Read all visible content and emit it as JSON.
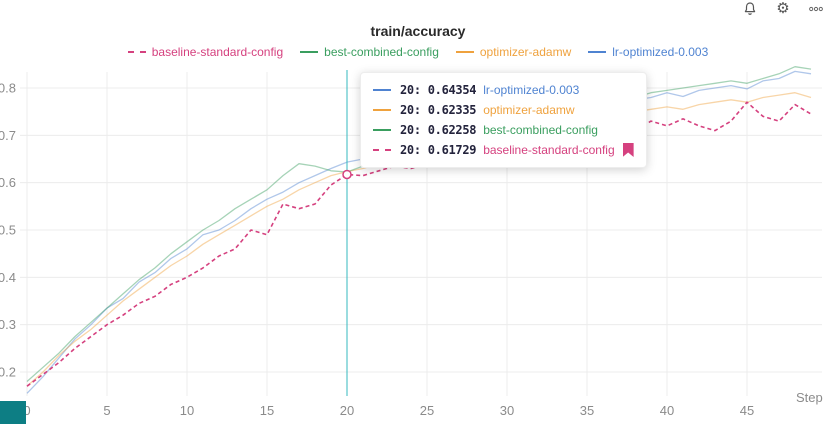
{
  "header": {
    "title": "train/accuracy",
    "icons": [
      "bell-icon",
      "gear-icon",
      "more-options-icon"
    ]
  },
  "colors": {
    "pink": "#d5417f",
    "green": "#3a9e5f",
    "orange": "#efa23e",
    "blue": "#4f83d1",
    "crosshair": "#35b8bf",
    "grid": "#ececec",
    "axis_text": "#8b8b8b"
  },
  "legend": {
    "items": [
      {
        "label": "baseline-standard-config",
        "color": "#d5417f",
        "dashed": true
      },
      {
        "label": "best-combined-config",
        "color": "#3a9e5f",
        "dashed": false
      },
      {
        "label": "optimizer-adamw",
        "color": "#efa23e",
        "dashed": false
      },
      {
        "label": "lr-optimized-0.003",
        "color": "#4f83d1",
        "dashed": false
      }
    ]
  },
  "tooltip": {
    "separator": ": ",
    "rows": [
      {
        "step": "20",
        "value": "0.64354",
        "name": "lr-optimized-0.003",
        "color": "#4f83d1",
        "dashed": false,
        "bookmarked": false
      },
      {
        "step": "20",
        "value": "0.62335",
        "name": "optimizer-adamw",
        "color": "#efa23e",
        "dashed": false,
        "bookmarked": false
      },
      {
        "step": "20",
        "value": "0.62258",
        "name": "best-combined-config",
        "color": "#3a9e5f",
        "dashed": false,
        "bookmarked": false
      },
      {
        "step": "20",
        "value": "0.61729",
        "name": "baseline-standard-config",
        "color": "#d5417f",
        "dashed": true,
        "bookmarked": true
      }
    ]
  },
  "chart_data": {
    "type": "line",
    "title": "train/accuracy",
    "xlabel": "Step",
    "ylabel": "",
    "x_ticks": [
      0,
      5,
      10,
      15,
      20,
      25,
      30,
      35,
      40,
      45
    ],
    "y_ticks": [
      0.2,
      0.3,
      0.4,
      0.5,
      0.6,
      0.7,
      0.8
    ],
    "xlim": [
      0,
      49.5
    ],
    "ylim": [
      0.13,
      0.85
    ],
    "grid": true,
    "legend_position": "top",
    "crosshair_step": 20,
    "highlight": {
      "series": "baseline-standard-config",
      "step": 20,
      "value": 0.61729
    },
    "series": [
      {
        "name": "baseline-standard-config",
        "color": "#d5417f",
        "dashed": true,
        "values": [
          0.17,
          0.195,
          0.22,
          0.25,
          0.275,
          0.3,
          0.32,
          0.345,
          0.36,
          0.385,
          0.4,
          0.42,
          0.445,
          0.46,
          0.5,
          0.49,
          0.555,
          0.545,
          0.555,
          0.595,
          0.61729,
          0.615,
          0.625,
          0.635,
          0.63,
          0.64,
          0.65,
          0.645,
          0.655,
          0.66,
          0.67,
          0.675,
          0.68,
          0.685,
          0.69,
          0.695,
          0.7,
          0.705,
          0.71,
          0.73,
          0.72,
          0.735,
          0.72,
          0.71,
          0.73,
          0.77,
          0.74,
          0.73,
          0.765,
          0.745
        ]
      },
      {
        "name": "best-combined-config",
        "color": "#3a9e5f",
        "dashed": false,
        "values": [
          0.18,
          0.21,
          0.24,
          0.275,
          0.305,
          0.335,
          0.365,
          0.395,
          0.42,
          0.45,
          0.475,
          0.5,
          0.52,
          0.545,
          0.565,
          0.585,
          0.615,
          0.64,
          0.635,
          0.625,
          0.62258,
          0.635,
          0.65,
          0.66,
          0.67,
          0.68,
          0.69,
          0.7,
          0.705,
          0.715,
          0.72,
          0.73,
          0.74,
          0.745,
          0.755,
          0.76,
          0.77,
          0.775,
          0.78,
          0.79,
          0.795,
          0.8,
          0.805,
          0.81,
          0.815,
          0.81,
          0.82,
          0.83,
          0.845,
          0.84
        ]
      },
      {
        "name": "optimizer-adamw",
        "color": "#efa23e",
        "dashed": false,
        "values": [
          0.17,
          0.2,
          0.235,
          0.265,
          0.29,
          0.32,
          0.35,
          0.375,
          0.4,
          0.425,
          0.445,
          0.47,
          0.49,
          0.51,
          0.53,
          0.55,
          0.565,
          0.585,
          0.6,
          0.615,
          0.62335,
          0.63,
          0.64,
          0.65,
          0.655,
          0.665,
          0.67,
          0.68,
          0.685,
          0.695,
          0.7,
          0.71,
          0.715,
          0.72,
          0.73,
          0.735,
          0.74,
          0.745,
          0.75,
          0.755,
          0.76,
          0.755,
          0.765,
          0.77,
          0.775,
          0.77,
          0.78,
          0.785,
          0.79,
          0.78
        ]
      },
      {
        "name": "lr-optimized-0.003",
        "color": "#4f83d1",
        "dashed": false,
        "values": [
          0.155,
          0.19,
          0.23,
          0.27,
          0.3,
          0.335,
          0.355,
          0.39,
          0.41,
          0.44,
          0.46,
          0.49,
          0.5,
          0.52,
          0.545,
          0.565,
          0.58,
          0.6,
          0.615,
          0.63,
          0.64354,
          0.65,
          0.66,
          0.67,
          0.675,
          0.685,
          0.695,
          0.7,
          0.71,
          0.715,
          0.725,
          0.73,
          0.74,
          0.745,
          0.75,
          0.755,
          0.765,
          0.77,
          0.775,
          0.78,
          0.79,
          0.782,
          0.795,
          0.8,
          0.805,
          0.798,
          0.815,
          0.82,
          0.835,
          0.83
        ]
      }
    ]
  }
}
